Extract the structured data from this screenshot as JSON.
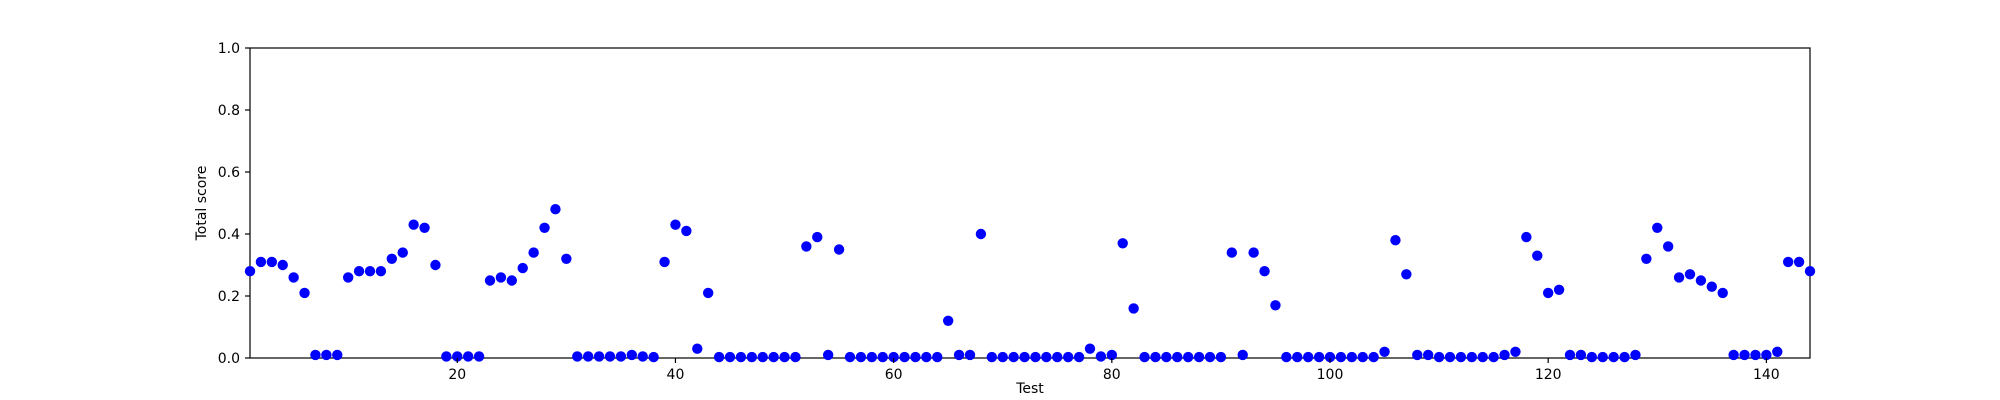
{
  "chart_data": {
    "type": "scatter",
    "title": "",
    "xlabel": "Test",
    "ylabel": "Total score",
    "xlim": [
      1,
      144
    ],
    "ylim": [
      0.0,
      1.0
    ],
    "xticks": [
      20,
      40,
      60,
      80,
      100,
      120,
      140
    ],
    "xtick_labels": [
      "20",
      "40",
      "60",
      "80",
      "100",
      "120",
      "140"
    ],
    "yticks": [
      0.0,
      0.2,
      0.4,
      0.6,
      0.8,
      1.0
    ],
    "ytick_labels": [
      "0.0",
      "0.2",
      "0.4",
      "0.6",
      "0.8",
      "1.0"
    ],
    "grid": false,
    "marker_color": "#0000ff",
    "x": [
      1,
      2,
      3,
      4,
      5,
      6,
      7,
      8,
      9,
      10,
      11,
      12,
      13,
      14,
      15,
      16,
      17,
      18,
      19,
      20,
      21,
      22,
      23,
      24,
      25,
      26,
      27,
      28,
      29,
      30,
      31,
      32,
      33,
      34,
      35,
      36,
      37,
      38,
      39,
      40,
      41,
      42,
      43,
      44,
      45,
      46,
      47,
      48,
      49,
      50,
      51,
      52,
      53,
      54,
      55,
      56,
      57,
      58,
      59,
      60,
      61,
      62,
      63,
      64,
      65,
      66,
      67,
      68,
      69,
      70,
      71,
      72,
      73,
      74,
      75,
      76,
      77,
      78,
      79,
      80,
      81,
      82,
      83,
      84,
      85,
      86,
      87,
      88,
      89,
      90,
      91,
      92,
      93,
      94,
      95,
      96,
      97,
      98,
      99,
      100,
      101,
      102,
      103,
      104,
      105,
      106,
      107,
      108,
      109,
      110,
      111,
      112,
      113,
      114,
      115,
      116,
      117,
      118,
      119,
      120,
      121,
      122,
      123,
      124,
      125,
      126,
      127,
      128,
      129,
      130,
      131,
      132,
      133,
      134,
      135,
      136,
      137,
      138,
      139,
      140,
      141,
      142,
      143,
      144
    ],
    "y": [
      0.28,
      0.31,
      0.31,
      0.3,
      0.26,
      0.21,
      0.01,
      0.01,
      0.01,
      0.26,
      0.28,
      0.28,
      0.28,
      0.32,
      0.34,
      0.43,
      0.42,
      0.3,
      0.005,
      0.005,
      0.005,
      0.005,
      0.25,
      0.26,
      0.25,
      0.29,
      0.34,
      0.42,
      0.48,
      0.32,
      0.005,
      0.005,
      0.005,
      0.005,
      0.005,
      0.01,
      0.005,
      0.003,
      0.31,
      0.43,
      0.41,
      0.03,
      0.21,
      0.003,
      0.003,
      0.003,
      0.003,
      0.003,
      0.003,
      0.003,
      0.003,
      0.36,
      0.39,
      0.01,
      0.35,
      0.003,
      0.003,
      0.003,
      0.003,
      0.003,
      0.003,
      0.003,
      0.003,
      0.003,
      0.12,
      0.01,
      0.01,
      0.4,
      0.003,
      0.003,
      0.003,
      0.003,
      0.003,
      0.003,
      0.003,
      0.003,
      0.003,
      0.03,
      0.005,
      0.01,
      0.37,
      0.16,
      0.003,
      0.003,
      0.003,
      0.003,
      0.003,
      0.003,
      0.003,
      0.003,
      0.34,
      0.01,
      0.34,
      0.28,
      0.17,
      0.003,
      0.003,
      0.003,
      0.003,
      0.003,
      0.003,
      0.003,
      0.003,
      0.003,
      0.02,
      0.38,
      0.27,
      0.01,
      0.01,
      0.003,
      0.003,
      0.003,
      0.003,
      0.003,
      0.003,
      0.01,
      0.02,
      0.39,
      0.33,
      0.21,
      0.22,
      0.01,
      0.01,
      0.003,
      0.003,
      0.003,
      0.003,
      0.01,
      0.32,
      0.42,
      0.36,
      0.26,
      0.27,
      0.25,
      0.23,
      0.21,
      0.01,
      0.01,
      0.01,
      0.01,
      0.02,
      0.31,
      0.31,
      0.28
    ]
  }
}
